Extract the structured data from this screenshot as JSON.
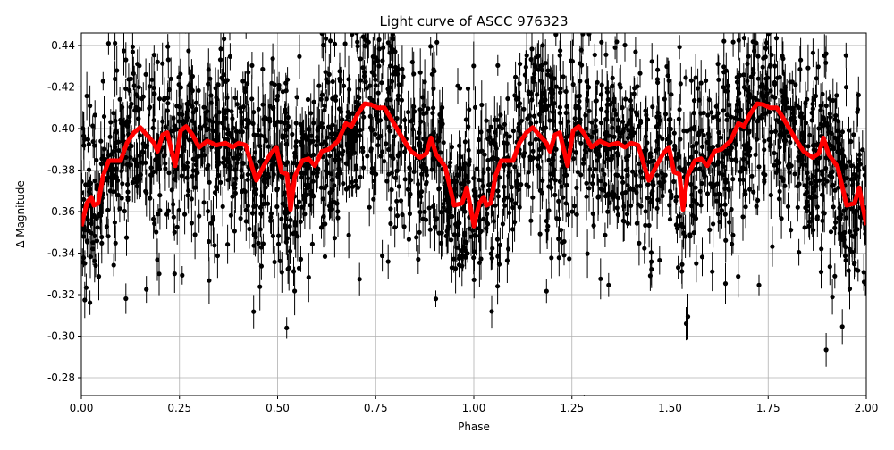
{
  "chart_data": {
    "type": "scatter",
    "title": "Light curve of ASCC 976323",
    "xlabel": "Phase",
    "ylabel": "Δ Magnitude",
    "xlim": [
      0,
      2
    ],
    "ylim": [
      -0.446,
      -0.2714
    ],
    "y_inverted": true,
    "grid": true,
    "x_ticks": [
      "0.00",
      "0.25",
      "0.50",
      "0.75",
      "1.00",
      "1.25",
      "1.50",
      "1.75",
      "2.00"
    ],
    "y_ticks": [
      "-0.44",
      "-0.42",
      "-0.40",
      "-0.38",
      "-0.36",
      "-0.34",
      "-0.32",
      "-0.30",
      "-0.28"
    ],
    "colors": {
      "points": "#000000",
      "model": "#ff0000",
      "grid": "#b0b0b0"
    },
    "series": [
      {
        "kind": "errorbar-scatter",
        "description_of_values": "dense phase-folded photometry, repeated over two cycles, scattered about the red curve",
        "scatter_sd": 0.02
      },
      {
        "kind": "line",
        "repeat_period": 1,
        "x": [
          0,
          0.014,
          0.025,
          0.032,
          0.043,
          0.055,
          0.07,
          0.1,
          0.116,
          0.134,
          0.15,
          0.168,
          0.185,
          0.194,
          0.207,
          0.219,
          0.239,
          0.253,
          0.267,
          0.283,
          0.3,
          0.321,
          0.344,
          0.367,
          0.385,
          0.401,
          0.419,
          0.435,
          0.446,
          0.465,
          0.483,
          0.497,
          0.51,
          0.524,
          0.533,
          0.544,
          0.563,
          0.579,
          0.595,
          0.613,
          0.631,
          0.654,
          0.674,
          0.688,
          0.704,
          0.722,
          0.738,
          0.754,
          0.772,
          0.79,
          0.813,
          0.84,
          0.863,
          0.879,
          0.891,
          0.904,
          0.927,
          0.95,
          0.97,
          0.982,
          1.0
        ],
        "y": [
          -0.353,
          -0.364,
          -0.367,
          -0.363,
          -0.364,
          -0.377,
          -0.3845,
          -0.3845,
          -0.393,
          -0.398,
          -0.4005,
          -0.3965,
          -0.393,
          -0.389,
          -0.397,
          -0.398,
          -0.382,
          -0.399,
          -0.401,
          -0.397,
          -0.391,
          -0.394,
          -0.392,
          -0.393,
          -0.391,
          -0.393,
          -0.392,
          -0.3815,
          -0.375,
          -0.382,
          -0.388,
          -0.391,
          -0.379,
          -0.378,
          -0.361,
          -0.377,
          -0.3845,
          -0.3855,
          -0.382,
          -0.389,
          -0.39,
          -0.394,
          -0.4025,
          -0.401,
          -0.407,
          -0.412,
          -0.4115,
          -0.41,
          -0.41,
          -0.4045,
          -0.397,
          -0.389,
          -0.386,
          -0.388,
          -0.3955,
          -0.3875,
          -0.3815,
          -0.363,
          -0.364,
          -0.3715,
          -0.3535
        ]
      }
    ]
  }
}
